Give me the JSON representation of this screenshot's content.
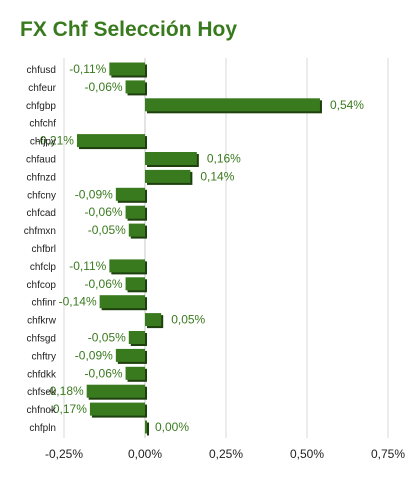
{
  "chart_data": {
    "type": "bar",
    "orientation": "horizontal",
    "title": "FX Chf Selección Hoy",
    "xlabel": "",
    "ylabel": "",
    "xlim": [
      -0.25,
      0.75
    ],
    "grid": true,
    "legend": "none",
    "colors": {
      "bar": "#3a7a1e",
      "bar_shadow": "#1e3f0e",
      "title": "#3a7a1e",
      "label": "#3a7a1e",
      "grid": "#d8d8d8"
    },
    "x_ticks": [
      -0.25,
      0,
      0.25,
      0.5,
      0.75
    ],
    "x_tick_labels": [
      "-0,25%",
      "0,00%",
      "0,25%",
      "0,50%",
      "0,75%"
    ],
    "categories": [
      "chfusd",
      "chfeur",
      "chfgbp",
      "chfchf",
      "chfjpy",
      "chfaud",
      "chfnzd",
      "chfcny",
      "chfcad",
      "chfmxn",
      "chfbrl",
      "chfclp",
      "chfcop",
      "chfinr",
      "chfkrw",
      "chfsgd",
      "chftry",
      "chfdkk",
      "chfsek",
      "chfnok",
      "chfpln"
    ],
    "values": [
      -0.11,
      -0.06,
      0.54,
      null,
      -0.21,
      0.16,
      0.14,
      -0.09,
      -0.06,
      -0.05,
      null,
      -0.11,
      -0.06,
      -0.14,
      0.05,
      -0.05,
      -0.09,
      -0.06,
      -0.18,
      -0.17,
      0.0
    ],
    "value_labels": [
      "-0,11%",
      "-0,06%",
      "0,54%",
      "",
      "-0,21%",
      "0,16%",
      "0,14%",
      "-0,09%",
      "-0,06%",
      "-0,05%",
      "",
      "-0,11%",
      "-0,06%",
      "-0,14%",
      "0,05%",
      "-0,05%",
      "-0,09%",
      "-0,06%",
      "-0,18%",
      "-0,17%",
      "0,00%"
    ]
  }
}
